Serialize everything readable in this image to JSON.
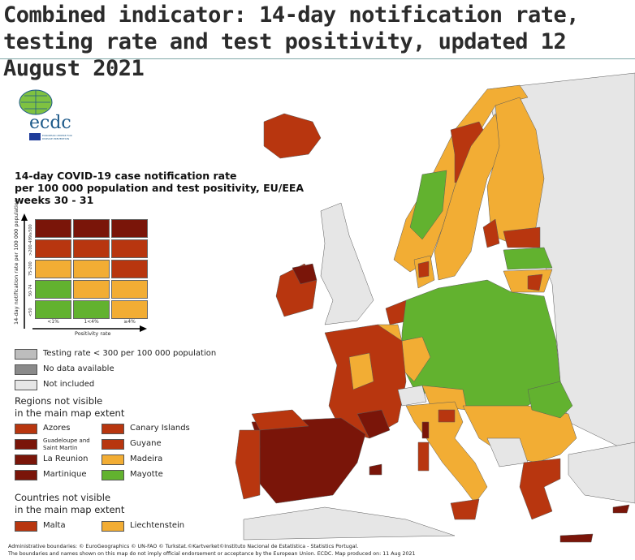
{
  "title": "Combined indicator: 14-day notification rate, testing rate and test positivity, updated 12 August 2021",
  "logo": {
    "text": "ecdc",
    "subtitle": "EUROPEAN CENTRE FOR DISEASE PREVENTION AND CONTROL"
  },
  "legend": {
    "title_lines": [
      "14-day COVID-19 case notification rate",
      "per 100 000 population and test positivity, EU/EEA",
      "weeks 30 - 31"
    ],
    "y_axis_label": "14-day notification rate per 100 000 population",
    "x_axis_label": "Positivity rate",
    "rows": [
      "≥500",
      ">200-499",
      "75-200",
      "50-74",
      "<50"
    ],
    "columns": [
      "<1%",
      "1<4%",
      "≥4%"
    ],
    "matrix": [
      [
        "#7a1509",
        "#7a1509",
        "#7a1509"
      ],
      [
        "#b8360f",
        "#b8360f",
        "#b8360f"
      ],
      [
        "#f2ad34",
        "#f2ad34",
        "#b8360f"
      ],
      [
        "#62b22f",
        "#f2ad34",
        "#f2ad34"
      ],
      [
        "#62b22f",
        "#62b22f",
        "#f2ad34"
      ]
    ],
    "special": [
      {
        "label": "Testing rate < 300 per 100 000 population",
        "color": "#bdbdbd"
      },
      {
        "label": "No data available",
        "color": "#8a8a8a"
      },
      {
        "label": "Not included",
        "color": "#e6e6e6"
      }
    ],
    "regions_heading": [
      "Regions not visible",
      "in the main map extent"
    ],
    "regions": [
      {
        "label": "Azores",
        "color": "#b8360f"
      },
      {
        "label": "Canary Islands",
        "color": "#b8360f"
      },
      {
        "label": "Guadeloupe and Saint Martin",
        "color": "#7a1509"
      },
      {
        "label": "Guyane",
        "color": "#b8360f"
      },
      {
        "label": "La Reunion",
        "color": "#7a1509"
      },
      {
        "label": "Madeira",
        "color": "#f2ad34"
      },
      {
        "label": "Martinique",
        "color": "#7a1509"
      },
      {
        "label": "Mayotte",
        "color": "#62b22f"
      }
    ],
    "countries_heading": [
      "Countries not visible",
      "in the main map extent"
    ],
    "countries": [
      {
        "label": "Malta",
        "color": "#b8360f"
      },
      {
        "label": "Liechtenstein",
        "color": "#f2ad34"
      }
    ]
  },
  "footer": [
    "Administrative boundaries: © EuroGeographics © UN-FAO © Turkstat.©Kartverket©Instituto Nacional de Estatística - Statistics Portugal.",
    "The boundaries and names shown on this map do not imply official endorsement or acceptance by the European Union. ECDC. Map produced on: 11 Aug 2021"
  ]
}
